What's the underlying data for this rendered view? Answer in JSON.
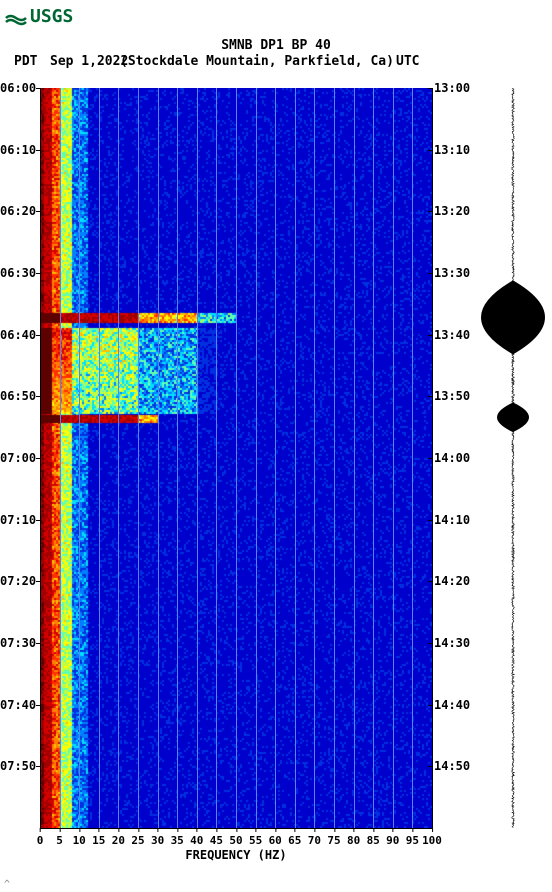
{
  "logo_text": "USGS",
  "title": "SMNB DP1 BP 40",
  "subtitle": {
    "pdt": "PDT",
    "date": "Sep 1,2022",
    "location": "(Stockdale Mountain, Parkfield, Ca)",
    "utc": "UTC"
  },
  "x_axis": {
    "label": "FREQUENCY (HZ)",
    "ticks": [
      0,
      5,
      10,
      15,
      20,
      25,
      30,
      35,
      40,
      45,
      50,
      55,
      60,
      65,
      70,
      75,
      80,
      85,
      90,
      95,
      100
    ],
    "xlim": [
      0,
      100
    ]
  },
  "y_axis_left": {
    "ticks": [
      "06:00",
      "06:10",
      "06:20",
      "06:30",
      "06:40",
      "06:50",
      "07:00",
      "07:10",
      "07:20",
      "07:30",
      "07:40",
      "07:50"
    ],
    "positions_pct": [
      0,
      8.33,
      16.67,
      25,
      33.33,
      41.67,
      50,
      58.33,
      66.67,
      75,
      83.33,
      91.67
    ]
  },
  "y_axis_right": {
    "ticks": [
      "13:00",
      "13:10",
      "13:20",
      "13:30",
      "13:40",
      "13:50",
      "14:00",
      "14:10",
      "14:20",
      "14:30",
      "14:40",
      "14:50"
    ],
    "positions_pct": [
      0,
      8.33,
      16.67,
      25,
      33.33,
      41.67,
      50,
      58.33,
      66.67,
      75,
      83.33,
      91.67
    ]
  },
  "grid_vlines_at": [
    5,
    10,
    15,
    20,
    25,
    30,
    35,
    40,
    45,
    50,
    55,
    60,
    65,
    70,
    75,
    80,
    85,
    90,
    95
  ],
  "plot": {
    "bg_color": "#0000cc",
    "grid_color": "#5a7fff",
    "colormap": [
      "#5c0000",
      "#a00000",
      "#d40000",
      "#ff3000",
      "#ff8000",
      "#ffc000",
      "#ffff00",
      "#c0ff40",
      "#60ffb0",
      "#00e0ff",
      "#0080ff",
      "#0030e0",
      "#0000cc"
    ],
    "events": [
      {
        "t_start_pct": 30.5,
        "t_end_pct": 31.8,
        "freq_end_pct": 50,
        "intensity": "high"
      },
      {
        "t_start_pct": 32.5,
        "t_end_pct": 44.0,
        "freq_end_pct": 45,
        "intensity": "medium"
      },
      {
        "t_start_pct": 44.2,
        "t_end_pct": 45.2,
        "freq_end_pct": 30,
        "intensity": "high"
      }
    ]
  },
  "seismogram": {
    "baseline_amp": 0.04,
    "events": [
      {
        "t_pct": 31,
        "duration_pct": 5,
        "amp": 1.0
      },
      {
        "t_pct": 44.5,
        "duration_pct": 2,
        "amp": 0.5
      }
    ],
    "color": "#000000"
  },
  "footer_mark": "^"
}
